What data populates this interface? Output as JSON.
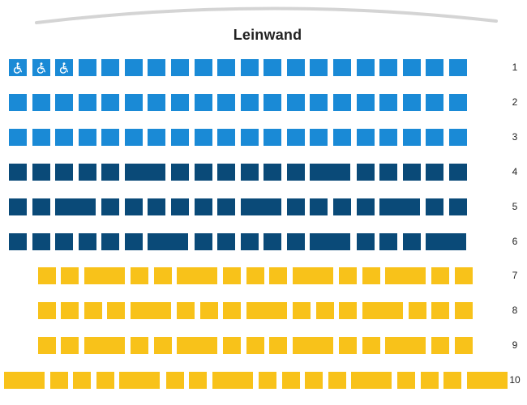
{
  "screen": {
    "label": "Leinwand"
  },
  "colors": {
    "accessible": "#1a8ad6",
    "standard": "#1a8ad6",
    "premium": "#0a4a78",
    "couch": "#f8c21a",
    "icon": "#ffffff",
    "screen_line": "#d4d4d4"
  },
  "seat_kinds": {
    "a": "accessible",
    "s": "standard",
    "p": "premium",
    "c": "couch"
  },
  "rows": [
    {
      "label": "1",
      "seats": [
        "a",
        "a",
        "a",
        "s",
        "s",
        "s",
        "s",
        "s",
        "s",
        "s",
        "s",
        "s",
        "s",
        "s",
        "s",
        "s",
        "s",
        "s",
        "s",
        "s"
      ]
    },
    {
      "label": "2",
      "seats": [
        "s",
        "s",
        "s",
        "s",
        "s",
        "s",
        "s",
        "s",
        "s",
        "s",
        "s",
        "s",
        "s",
        "s",
        "s",
        "s",
        "s",
        "s",
        "s",
        "s"
      ]
    },
    {
      "label": "3",
      "seats": [
        "s",
        "s",
        "s",
        "s",
        "s",
        "s",
        "s",
        "s",
        "s",
        "s",
        "s",
        "s",
        "s",
        "s",
        "s",
        "s",
        "s",
        "s",
        "s",
        "s"
      ]
    },
    {
      "label": "4",
      "seats": [
        "p",
        "p",
        "p",
        "p",
        "p",
        "p",
        "p",
        "p",
        "p",
        "p",
        "p",
        "p",
        "p",
        "p",
        "p",
        "p",
        "p",
        "p",
        "p",
        "p"
      ]
    },
    {
      "label": "5",
      "seats": [
        "p",
        "p",
        "p",
        "p",
        "p",
        "p",
        "p",
        "p",
        "p",
        "p",
        "p",
        "p",
        "p",
        "p",
        "p",
        "p",
        "p",
        "p",
        "p",
        "p"
      ]
    },
    {
      "label": "6",
      "seats": [
        "p",
        "p",
        "p",
        "p",
        "p",
        "p",
        "p",
        "p",
        "p",
        "p",
        "p",
        "p",
        "p",
        "p",
        "p",
        "p",
        "p",
        "p",
        "p",
        "p"
      ]
    },
    {
      "label": "7",
      "seats": [
        "c",
        "c",
        "c",
        "c",
        "c",
        "c",
        "c",
        "c",
        "c",
        "c",
        "c",
        "c",
        "c",
        "c",
        "c",
        "c",
        "c",
        "c",
        "c"
      ]
    },
    {
      "label": "8",
      "seats": [
        "c",
        "c",
        "c",
        "c",
        "c",
        "c",
        "c",
        "c",
        "c",
        "c",
        "c",
        "c",
        "c",
        "c",
        "c",
        "c",
        "c",
        "c",
        "c"
      ]
    },
    {
      "label": "9",
      "seats": [
        "c",
        "c",
        "c",
        "c",
        "c",
        "c",
        "c",
        "c",
        "c",
        "c",
        "c",
        "c",
        "c",
        "c",
        "c",
        "c",
        "c",
        "c",
        "c"
      ]
    },
    {
      "label": "10",
      "seats": [
        "c",
        "c",
        "c",
        "c",
        "c",
        "c",
        "c",
        "c",
        "c",
        "c",
        "c",
        "c",
        "c",
        "c",
        "c",
        "c",
        "c",
        "c",
        "c",
        "c",
        "c",
        "c"
      ]
    }
  ]
}
